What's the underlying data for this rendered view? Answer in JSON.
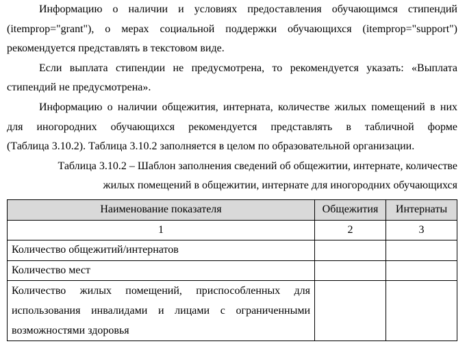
{
  "paragraphs": [
    [
      "Информацию о наличии и условиях предоставления обучающимся стипендий",
      "(itemprop=\"grant\"), о мерах социальной поддержки обучающихся (itemprop=\"support\")",
      "рекомендуется представлять в текстовом виде."
    ],
    [
      "Если выплата стипендии не предусмотрена, то рекомендуется указать: «Выплата",
      "стипендий не предусмотрена»."
    ],
    [
      "Информацию о наличии общежития, интерната, количестве жилых помещений в них",
      "для иногородних обучающихся рекомендуется представлять в табличной форме",
      "(Таблица 3.10.2). Таблица 3.10.2 заполняется в целом по образовательной организации."
    ]
  ],
  "caption": [
    "Таблица 3.10.2 – Шаблон заполнения сведений об общежитии, интернате, количестве",
    "жилых помещений в общежитии, интернате для иногородних обучающихся"
  ],
  "table": {
    "headers": [
      "Наименование показателя",
      "Общежития",
      "Интернаты"
    ],
    "numbers": [
      "1",
      "2",
      "3"
    ],
    "rows": [
      "Количество общежитий/интернатов",
      "Количество мест",
      "Количество жилых помещений, приспособленных для использования инвалидами и лицами с ограниченными возможностями здоровья"
    ]
  }
}
